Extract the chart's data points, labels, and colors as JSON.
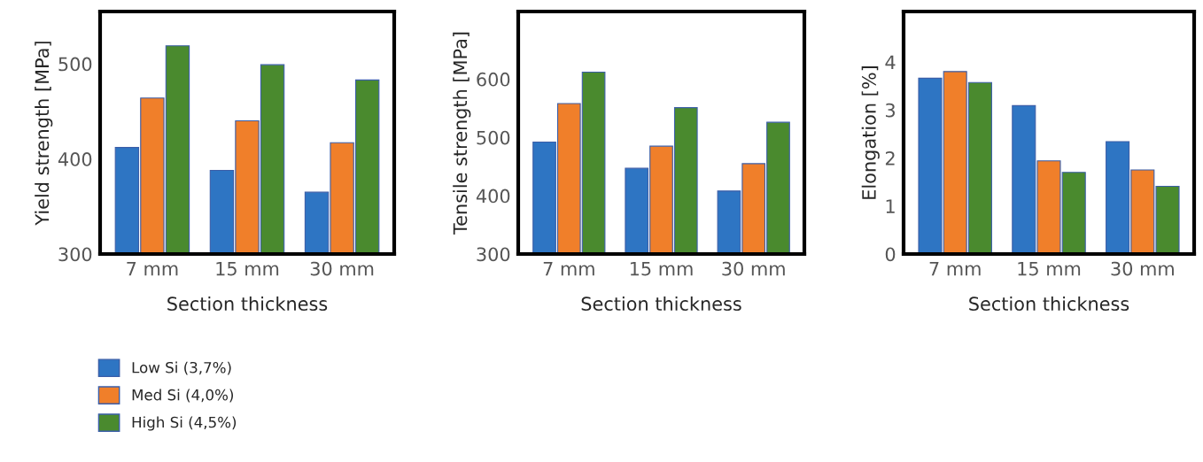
{
  "chart_data": [
    {
      "type": "bar",
      "categories": [
        "7 mm",
        "15 mm",
        "30 mm"
      ],
      "xlabel": "Section thickness",
      "ylabel": "Yield strength [MPa]",
      "ylim": [
        300,
        555
      ],
      "yticks": [
        300,
        400,
        500
      ],
      "grid": false,
      "legend": "bottom left",
      "series": [
        {
          "name": "Low Si (3,7%)",
          "color": "#2e75c3",
          "values": [
            412,
            388,
            365
          ]
        },
        {
          "name": "Med Si (4,0%)",
          "color": "#f07f2a",
          "values": [
            464,
            440,
            417
          ]
        },
        {
          "name": "High Si (4,5%)",
          "color": "#4a8a2e",
          "values": [
            519,
            499,
            483
          ]
        }
      ]
    },
    {
      "type": "bar",
      "categories": [
        "7 mm",
        "15 mm",
        "30 mm"
      ],
      "xlabel": "Section thickness",
      "ylabel": "Tensile strength [MPa]",
      "ylim": [
        300,
        716
      ],
      "yticks": [
        300,
        400,
        500,
        600
      ],
      "grid": false,
      "series": [
        {
          "color": "#2e75c3",
          "values": [
            492,
            447,
            408
          ]
        },
        {
          "color": "#f07f2a",
          "values": [
            558,
            485,
            455
          ]
        },
        {
          "color": "#4a8a2e",
          "values": [
            612,
            551,
            526
          ]
        }
      ]
    },
    {
      "type": "bar",
      "categories": [
        "7 mm",
        "15 mm",
        "30 mm"
      ],
      "xlabel": "Section thickness",
      "ylabel": "Elongation [%]",
      "ylim": [
        0,
        5.05
      ],
      "yticks": [
        0,
        1,
        2,
        3,
        4
      ],
      "grid": false,
      "series": [
        {
          "color": "#2e75c3",
          "values": [
            3.66,
            3.09,
            2.34
          ]
        },
        {
          "color": "#f07f2a",
          "values": [
            3.8,
            1.94,
            1.75
          ]
        },
        {
          "color": "#4a8a2e",
          "values": [
            3.57,
            1.7,
            1.41
          ]
        }
      ]
    }
  ]
}
